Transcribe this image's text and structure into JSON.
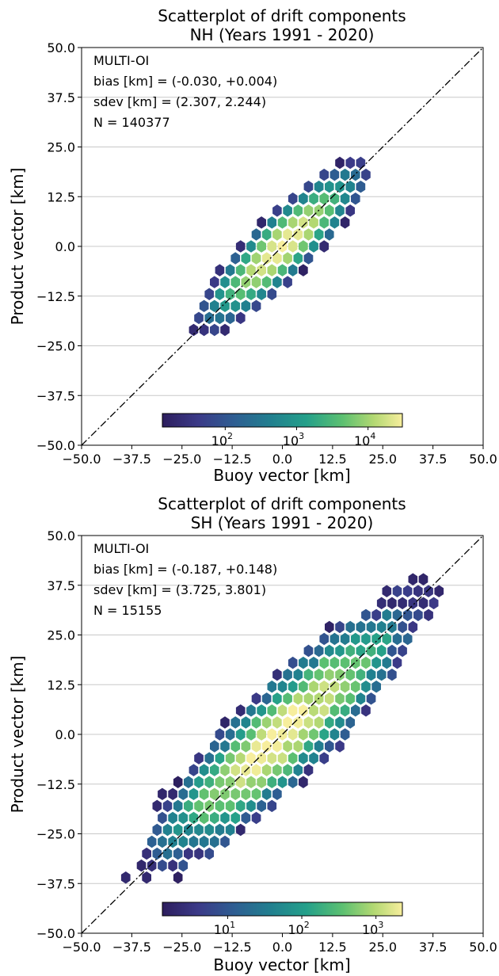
{
  "chart_data": [
    {
      "type": "hexbin",
      "title": "Scatterplot of drift components",
      "subtitle": "NH (Years 1991 - 2020)",
      "xlabel": "Buoy vector [km]",
      "ylabel": "Product vector [km]",
      "xlim": [
        -50,
        50
      ],
      "ylim": [
        -50,
        50
      ],
      "x_ticks": [
        "−50.0",
        "−37.5",
        "−25.0",
        "−12.5",
        "0.0",
        "12.5",
        "25.0",
        "37.5",
        "50.0"
      ],
      "y_ticks": [
        "−50.0",
        "−37.5",
        "−25.0",
        "−12.5",
        "0.0",
        "12.5",
        "25.0",
        "37.5",
        "50.0"
      ],
      "grid": "horizontal",
      "reference_line": "y = x (dash-dot)",
      "annotations": [
        "MULTI-OI",
        "bias [km] = (-0.030, +0.004)",
        "sdev [km] = (2.307, 2.244)",
        "N = 140377"
      ],
      "colorbar": {
        "scale": "log",
        "colormap": "viridis",
        "tick_labels": [
          "10",
          "10",
          "10"
        ],
        "tick_exps": [
          "2",
          "3",
          "4"
        ],
        "tick_values": [
          100,
          1000,
          10000
        ]
      },
      "distribution": {
        "center": [
          0,
          0
        ],
        "sd_along_diagonal": 8.2,
        "sd_across_diagonal": 2.1,
        "max_count": 20000,
        "extent": [
          -25,
          25
        ]
      }
    },
    {
      "type": "hexbin",
      "title": "Scatterplot of drift components",
      "subtitle": "SH (Years 1991 - 2020)",
      "xlabel": "Buoy vector [km]",
      "ylabel": "Product vector [km]",
      "xlim": [
        -50,
        50
      ],
      "ylim": [
        -50,
        50
      ],
      "x_ticks": [
        "−50.0",
        "−37.5",
        "−25.0",
        "−12.5",
        "0.0",
        "12.5",
        "25.0",
        "37.5",
        "50.0"
      ],
      "y_ticks": [
        "−50.0",
        "−37.5",
        "−25.0",
        "−12.5",
        "0.0",
        "12.5",
        "25.0",
        "37.5",
        "50.0"
      ],
      "grid": "horizontal",
      "reference_line": "y = x (dash-dot)",
      "annotations": [
        "MULTI-OI",
        "bias [km] = (-0.187, +0.148)",
        "sdev [km] = (3.725, 3.801)",
        "N = 15155"
      ],
      "colorbar": {
        "scale": "log",
        "colormap": "viridis",
        "tick_labels": [
          "10",
          "10",
          "10"
        ],
        "tick_exps": [
          "1",
          "2",
          "3"
        ],
        "tick_values": [
          10,
          100,
          1000
        ]
      },
      "distribution": {
        "center": [
          0,
          0
        ],
        "sd_along_diagonal": 13.5,
        "sd_across_diagonal": 3.3,
        "max_count": 1500,
        "extent": [
          -45,
          45
        ]
      }
    }
  ]
}
